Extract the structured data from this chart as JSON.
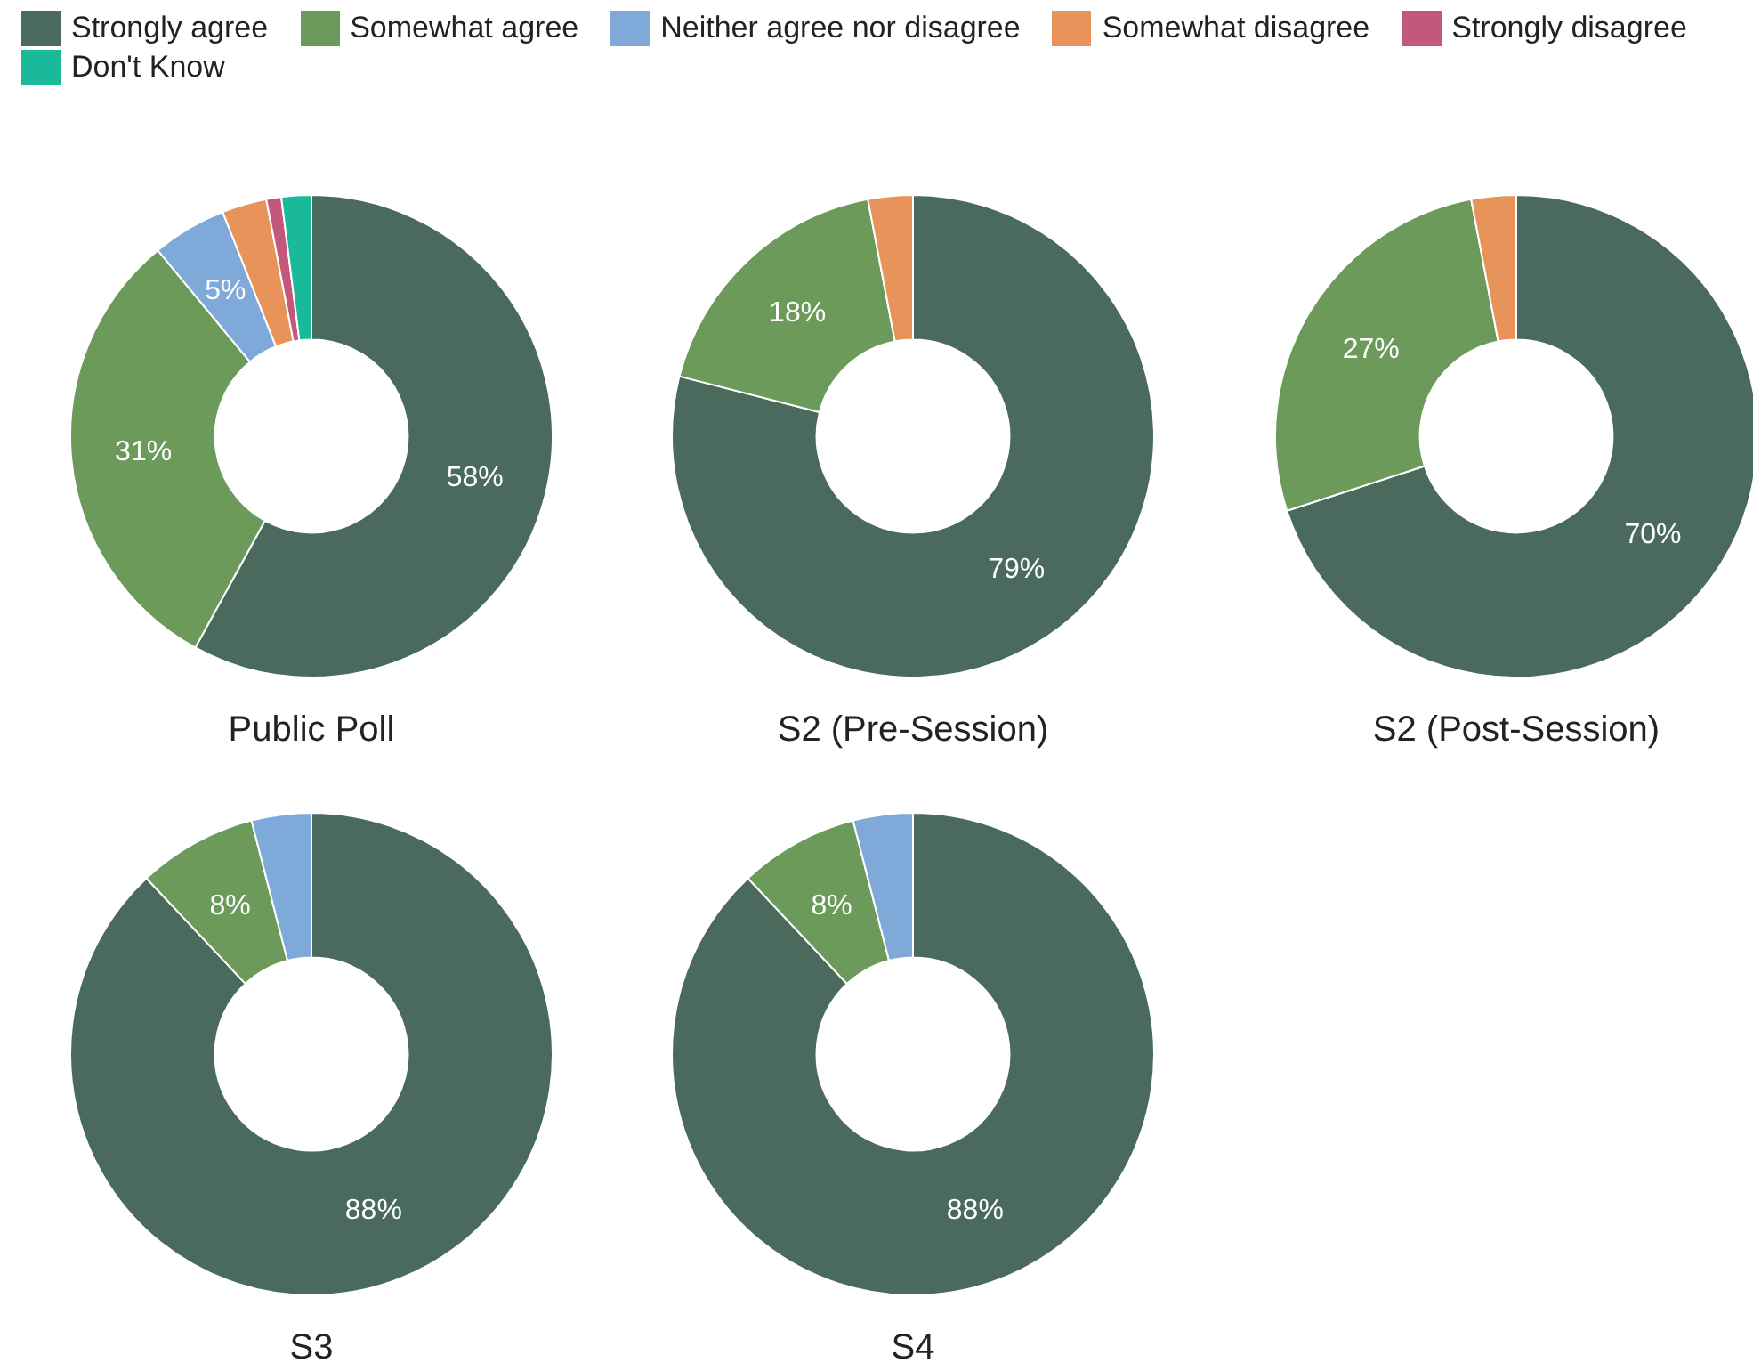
{
  "chart_data": [
    {
      "type": "donut",
      "title": "Public Poll",
      "legend": "top",
      "categories": [
        "Strongly agree",
        "Somewhat agree",
        "Neither agree nor disagree",
        "Somewhat disagree",
        "Strongly disagree",
        "Don't Know"
      ],
      "values": [
        58,
        31,
        5,
        3,
        1,
        2
      ],
      "colors": [
        "#4a6a5e",
        "#6b9a5a",
        "#7ea9d8",
        "#e8935a",
        "#c4587c",
        "#1ab99a"
      ],
      "value_labels": [
        "58%",
        "31%",
        "5%",
        null,
        null,
        null
      ]
    },
    {
      "type": "donut",
      "title": "S2 (Pre-Session)",
      "categories": [
        null,
        null,
        null
      ],
      "values": [
        79,
        18,
        3
      ],
      "colors": [
        "#4a6a5e",
        "#6b9a5a",
        "#e8935a"
      ],
      "value_labels": [
        "79%",
        "18%",
        null
      ]
    },
    {
      "type": "donut",
      "title": "S2 (Post-Session)",
      "categories": [
        null,
        null,
        null
      ],
      "values": [
        70,
        27,
        3
      ],
      "colors": [
        "#4a6a5e",
        "#6b9a5a",
        "#e8935a"
      ],
      "value_labels": [
        "70%",
        "27%",
        null
      ]
    },
    {
      "type": "donut",
      "title": "S3",
      "categories": [
        null,
        null,
        null
      ],
      "values": [
        88,
        8,
        4
      ],
      "colors": [
        "#4a6a5e",
        "#6b9a5a",
        "#7ea9d8"
      ],
      "value_labels": [
        "88%",
        "8%",
        null
      ]
    },
    {
      "type": "donut",
      "title": "S4",
      "categories": [
        null,
        null,
        null
      ],
      "values": [
        88,
        8,
        4
      ],
      "colors": [
        "#4a6a5e",
        "#6b9a5a",
        "#7ea9d8"
      ],
      "value_labels": [
        "88%",
        "8%",
        null
      ]
    }
  ]
}
